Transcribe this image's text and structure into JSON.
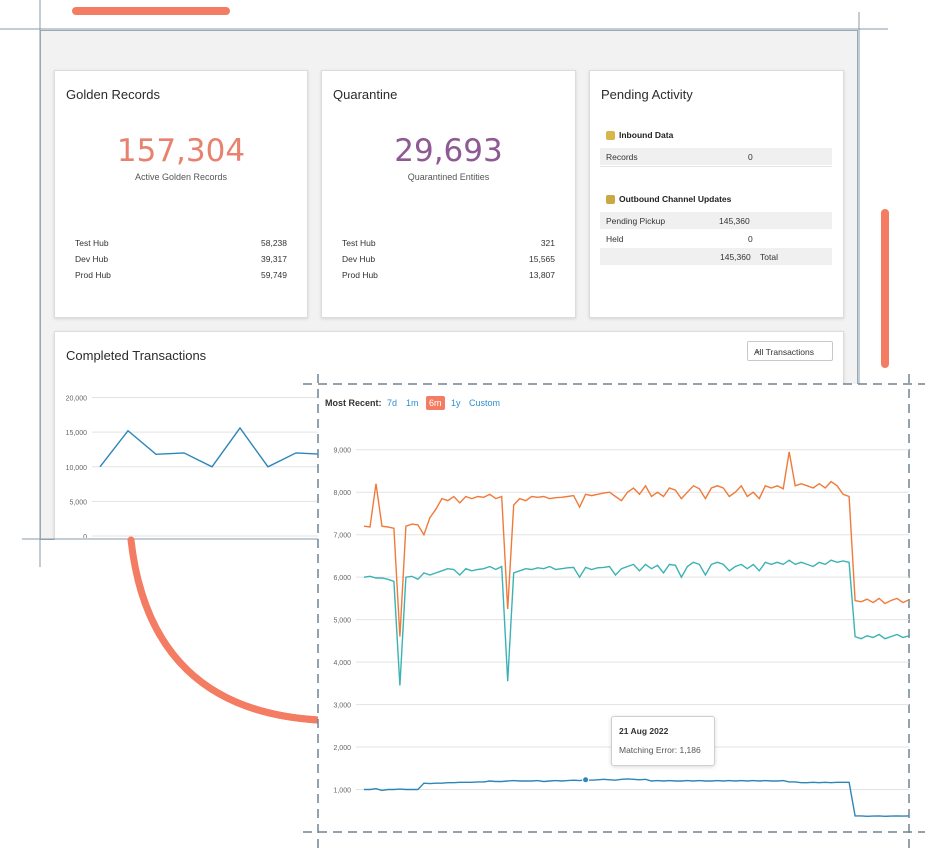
{
  "golden": {
    "title": "Golden Records",
    "count": "157,304",
    "caption": "Active Golden Records",
    "rows": [
      {
        "name": "Test Hub",
        "value": "58,238"
      },
      {
        "name": "Dev Hub",
        "value": "39,317"
      },
      {
        "name": "Prod Hub",
        "value": "59,749"
      }
    ]
  },
  "quarantine": {
    "title": "Quarantine",
    "count": "29,693",
    "caption": "Quarantined Entities",
    "rows": [
      {
        "name": "Test Hub",
        "value": "321"
      },
      {
        "name": "Dev Hub",
        "value": "15,565"
      },
      {
        "name": "Prod Hub",
        "value": "13,807"
      }
    ]
  },
  "pending": {
    "title": "Pending Activity",
    "inbound_title": "Inbound Data",
    "inbound_icon": "inbound-data-icon",
    "records_label": "Records",
    "records_value": "0",
    "outbound_title": "Outbound Channel Updates",
    "outbound_icon": "outbound-channel-icon",
    "pickup_label": "Pending Pickup",
    "pickup_value": "145,360",
    "held_label": "Held",
    "held_value": "0",
    "total_value": "145,360",
    "total_label": "Total"
  },
  "transactions": {
    "title": "Completed Transactions",
    "filter_value": "All Transactions"
  },
  "range_selector": {
    "label": "Most Recent:",
    "options": [
      "7d",
      "1m",
      "6m",
      "1y",
      "Custom"
    ],
    "selected": "6m"
  },
  "tooltip": {
    "date": "21 Aug 2022",
    "text": "Matching Error: 1,186"
  },
  "colors": {
    "accent": "#f47c62",
    "golden_number": "#e8826f",
    "quarantine_number": "#8e5a93",
    "series_orange": "#f07a3a",
    "series_teal": "#3cb2b4",
    "series_blue": "#2d86b8",
    "link": "#2f8fd0"
  },
  "chart_data": [
    {
      "type": "line",
      "title": "Completed Transactions",
      "yticks": [
        "20,000",
        "15,000",
        "10,000",
        "5,000",
        "0"
      ],
      "ylim": [
        0,
        20000
      ],
      "series": [
        {
          "values": [
            10000,
            15200,
            11800,
            12000,
            10000,
            15600,
            10000,
            12000,
            11800
          ]
        }
      ],
      "grid": true
    },
    {
      "type": "line",
      "yticks": [
        "9,000",
        "8,000",
        "7,000",
        "6,000",
        "5,000",
        "4,000",
        "3,000",
        "2,000",
        "1,000"
      ],
      "ylim": [
        0,
        9300
      ],
      "series": [
        {
          "values": [
            7200,
            7180,
            8200,
            7200,
            7180,
            7150,
            4600,
            7200,
            7250,
            7230,
            7000,
            7400,
            7600,
            7850,
            7800,
            7900,
            7750,
            7900,
            7850,
            7900,
            7880,
            7950,
            7850,
            7900,
            5250,
            7700,
            7850,
            7800,
            7900,
            7880,
            7900,
            7850,
            7870,
            7880,
            7900,
            7920,
            7650,
            7950,
            7920,
            7950,
            7980,
            8000,
            7900,
            7800,
            8000,
            8100,
            7950,
            8150,
            7900,
            8000,
            7900,
            8100,
            8050,
            7850,
            8000,
            8150,
            8080,
            7850,
            8100,
            8150,
            8100,
            7900,
            8000,
            8150,
            7900,
            8000,
            7850,
            8150,
            8100,
            8150,
            8080,
            8950,
            8150,
            8200,
            8150,
            8100,
            8200,
            8100,
            8250,
            8150,
            7950,
            7900,
            5450,
            5420,
            5480,
            5400,
            5500,
            5380,
            5450,
            5500,
            5400,
            5470
          ]
        },
        {
          "values": [
            6000,
            6020,
            5980,
            5980,
            5950,
            5900,
            3450,
            6000,
            6020,
            5950,
            6100,
            6050,
            6100,
            6150,
            6200,
            6180,
            6050,
            6200,
            6150,
            6180,
            6200,
            6250,
            6180,
            6250,
            3550,
            6100,
            6150,
            6200,
            6180,
            6220,
            6200,
            6250,
            6180,
            6200,
            6220,
            6230,
            6000,
            6230,
            6180,
            6220,
            6230,
            6250,
            6050,
            6200,
            6250,
            6300,
            6150,
            6300,
            6200,
            6280,
            6100,
            6300,
            6280,
            6000,
            6250,
            6350,
            6300,
            6050,
            6300,
            6350,
            6300,
            6150,
            6250,
            6300,
            6200,
            6300,
            6150,
            6350,
            6300,
            6350,
            6300,
            6400,
            6300,
            6350,
            6300,
            6250,
            6350,
            6300,
            6400,
            6350,
            6380,
            6350,
            4600,
            4550,
            4620,
            4580,
            4650,
            4550,
            4600,
            4650,
            4580,
            4620
          ]
        },
        {
          "values": [
            1000,
            1000,
            1020,
            980,
            1000,
            1000,
            1010,
            1000,
            1000,
            1000,
            1150,
            1140,
            1150,
            1150,
            1160,
            1160,
            1170,
            1170,
            1170,
            1180,
            1180,
            1200,
            1190,
            1190,
            1200,
            1210,
            1200,
            1200,
            1200,
            1210,
            1190,
            1200,
            1210,
            1200,
            1210,
            1220,
            1210,
            1230,
            1220,
            1230,
            1240,
            1230,
            1220,
            1240,
            1250,
            1240,
            1230,
            1240,
            1200,
            1210,
            1200,
            1210,
            1200,
            1200,
            1210,
            1200,
            1210,
            1200,
            1200,
            1210,
            1200,
            1210,
            1200,
            1210,
            1200,
            1210,
            1200,
            1210,
            1200,
            1200,
            1210,
            1180,
            1180,
            1160,
            1160,
            1170,
            1160,
            1170,
            1160,
            1170,
            1170,
            1170,
            380,
            380,
            370,
            375,
            380,
            370,
            375,
            380,
            375,
            380
          ]
        }
      ],
      "grid": true
    }
  ]
}
